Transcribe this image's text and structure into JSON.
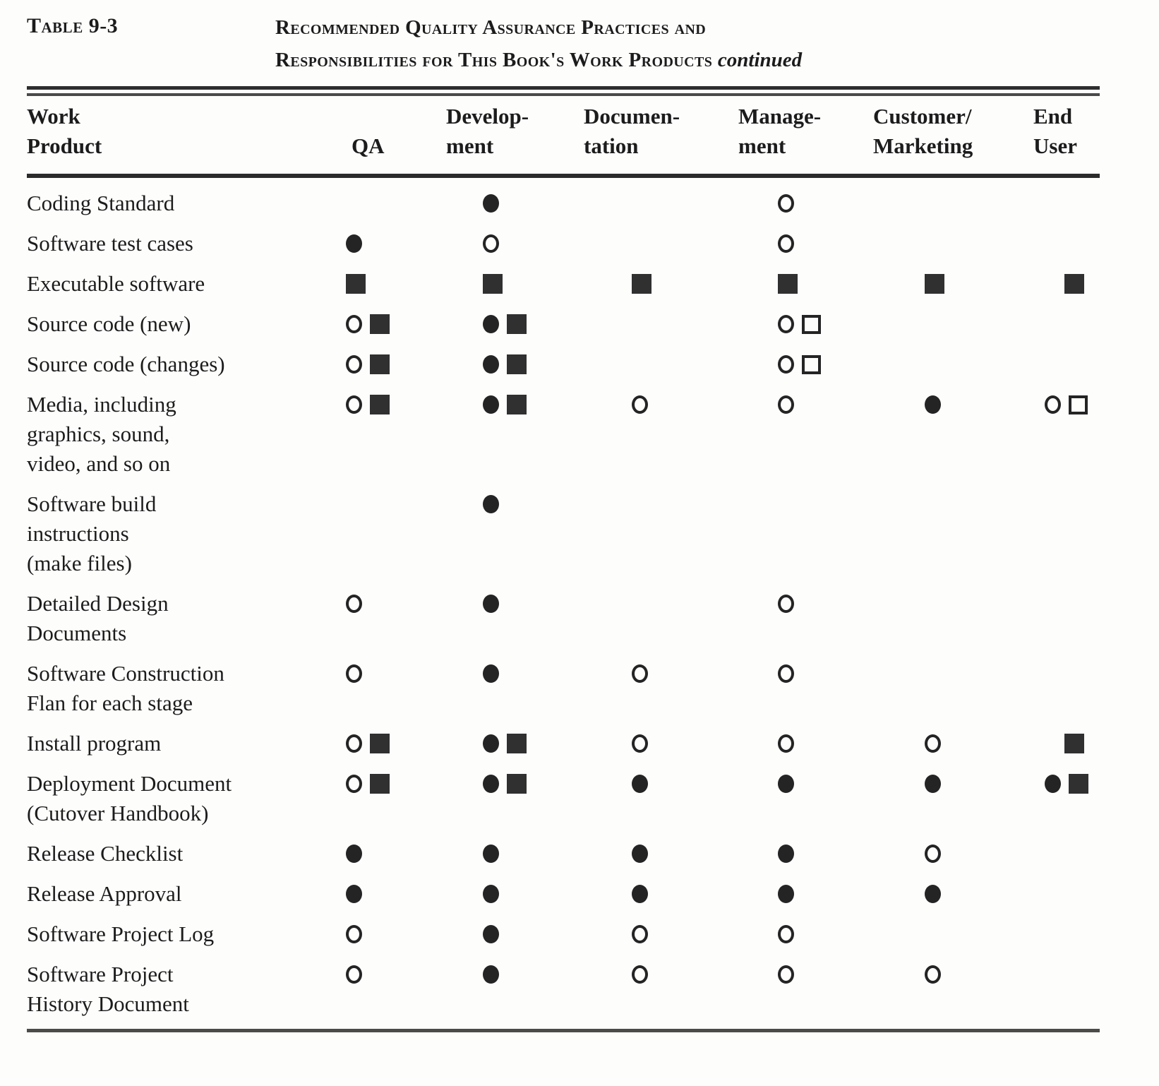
{
  "caption": {
    "label": "Table 9-3",
    "title_line1": "Recommended Quality Assurance Practices and",
    "title_line2": "Responsibilities for This Book's Work Products",
    "continued": "continued"
  },
  "columns": {
    "work_product": [
      "Work",
      "Product"
    ],
    "headers": [
      {
        "lines": [
          "",
          "QA"
        ]
      },
      {
        "lines": [
          "Develop-",
          "ment"
        ]
      },
      {
        "lines": [
          "Documen-",
          "tation"
        ]
      },
      {
        "lines": [
          "Manage-",
          "ment"
        ]
      },
      {
        "lines": [
          "Customer/",
          "Marketing"
        ]
      },
      {
        "lines": [
          "End",
          "User"
        ]
      }
    ]
  },
  "symbol_names": [
    "open-circle",
    "filled-circle",
    "filled-square",
    "open-square"
  ],
  "colors": {
    "ink": "#1c1c1c",
    "square_fill": "#303030",
    "background": "#fdfdfc"
  },
  "rows": [
    {
      "label_lines": [
        "Coding Standard"
      ],
      "cells": [
        [],
        [
          "filled-circle"
        ],
        [],
        [
          "open-circle"
        ],
        [],
        []
      ]
    },
    {
      "label_lines": [
        "Software test cases"
      ],
      "cells": [
        [
          "filled-circle"
        ],
        [
          "open-circle"
        ],
        [],
        [
          "open-circle"
        ],
        [],
        []
      ]
    },
    {
      "label_lines": [
        "Executable software"
      ],
      "cells": [
        [
          "filled-square"
        ],
        [
          "filled-square"
        ],
        [
          "filled-square"
        ],
        [
          "filled-square"
        ],
        [
          "filled-square"
        ],
        [
          "filled-square"
        ]
      ]
    },
    {
      "label_lines": [
        "Source code (new)"
      ],
      "cells": [
        [
          "open-circle",
          "filled-square"
        ],
        [
          "filled-circle",
          "filled-square"
        ],
        [],
        [
          "open-circle",
          "open-square"
        ],
        [],
        []
      ]
    },
    {
      "label_lines": [
        "Source code (changes)"
      ],
      "cells": [
        [
          "open-circle",
          "filled-square"
        ],
        [
          "filled-circle",
          "filled-square"
        ],
        [],
        [
          "open-circle",
          "open-square"
        ],
        [],
        []
      ]
    },
    {
      "label_lines": [
        "Media, including",
        "graphics, sound,",
        "video, and so on"
      ],
      "cells": [
        [
          "open-circle",
          "filled-square"
        ],
        [
          "filled-circle",
          "filled-square"
        ],
        [
          "open-circle"
        ],
        [
          "open-circle"
        ],
        [
          "filled-circle"
        ],
        [
          "open-circle",
          "open-square"
        ]
      ]
    },
    {
      "label_lines": [
        "Software build",
        "instructions",
        "(make files)"
      ],
      "cells": [
        [],
        [
          "filled-circle"
        ],
        [],
        [],
        [],
        []
      ]
    },
    {
      "label_lines": [
        "Detailed Design",
        "Documents"
      ],
      "cells": [
        [
          "open-circle"
        ],
        [
          "filled-circle"
        ],
        [],
        [
          "open-circle"
        ],
        [],
        []
      ]
    },
    {
      "label_lines": [
        "Software Construction",
        "Flan for each stage"
      ],
      "cells": [
        [
          "open-circle"
        ],
        [
          "filled-circle"
        ],
        [
          "open-circle"
        ],
        [
          "open-circle"
        ],
        [],
        []
      ]
    },
    {
      "label_lines": [
        "Install program"
      ],
      "cells": [
        [
          "open-circle",
          "filled-square"
        ],
        [
          "filled-circle",
          "filled-square"
        ],
        [
          "open-circle"
        ],
        [
          "open-circle"
        ],
        [
          "open-circle"
        ],
        [
          "filled-square"
        ]
      ]
    },
    {
      "label_lines": [
        "Deployment Document",
        "(Cutover Handbook)"
      ],
      "cells": [
        [
          "open-circle",
          "filled-square"
        ],
        [
          "filled-circle",
          "filled-square"
        ],
        [
          "filled-circle"
        ],
        [
          "filled-circle"
        ],
        [
          "filled-circle"
        ],
        [
          "filled-circle",
          "filled-square"
        ]
      ]
    },
    {
      "label_lines": [
        "Release Checklist"
      ],
      "cells": [
        [
          "filled-circle"
        ],
        [
          "filled-circle"
        ],
        [
          "filled-circle"
        ],
        [
          "filled-circle"
        ],
        [
          "open-circle"
        ],
        []
      ]
    },
    {
      "label_lines": [
        "Release Approval"
      ],
      "cells": [
        [
          "filled-circle"
        ],
        [
          "filled-circle"
        ],
        [
          "filled-circle"
        ],
        [
          "filled-circle"
        ],
        [
          "filled-circle"
        ],
        []
      ]
    },
    {
      "label_lines": [
        "Software Project Log"
      ],
      "cells": [
        [
          "open-circle"
        ],
        [
          "filled-circle"
        ],
        [
          "open-circle"
        ],
        [
          "open-circle"
        ],
        [],
        []
      ]
    },
    {
      "label_lines": [
        "Software Project",
        "History Document"
      ],
      "cells": [
        [
          "open-circle"
        ],
        [
          "filled-circle"
        ],
        [
          "open-circle"
        ],
        [
          "open-circle"
        ],
        [
          "open-circle"
        ],
        []
      ]
    }
  ]
}
